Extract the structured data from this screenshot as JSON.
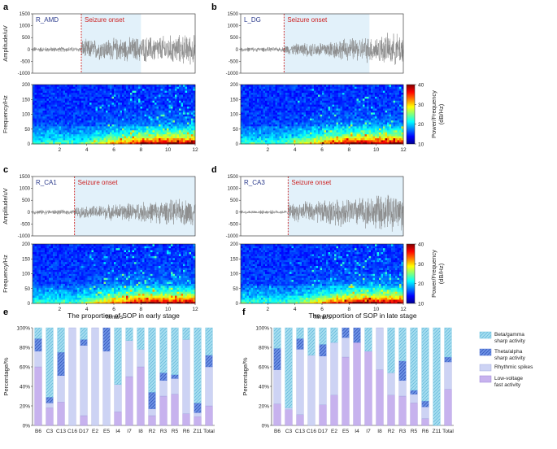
{
  "chart_data": {
    "eeg_panels": [
      {
        "label": "a",
        "region": "R_AMD",
        "onset_text": "Seizure onset",
        "onset_time": 3.6,
        "shade_range": [
          3.6,
          8.0
        ],
        "type": "line",
        "ylabel": "Amplitude/uV",
        "ylim": [
          -1000,
          1500
        ],
        "yticks": [
          -1000,
          -500,
          0,
          500,
          1000,
          1500
        ],
        "spec_ylabel": "Frequency/Hz",
        "spec_ylim": [
          0,
          200
        ],
        "spec_yticks": [
          0,
          50,
          100,
          150,
          200
        ],
        "xticks": [
          2,
          4,
          6,
          8,
          10,
          12
        ],
        "xlim": [
          0,
          12
        ],
        "xlabel": "",
        "pre_amp": 100,
        "post_amp": 380,
        "end_amp": 600
      },
      {
        "label": "b",
        "region": "L_DG",
        "onset_text": "Seizure onset",
        "onset_time": 3.2,
        "shade_range": [
          3.2,
          9.5
        ],
        "type": "line",
        "ylabel": "",
        "ylim": [
          -1000,
          1500
        ],
        "yticks": [
          -1000,
          -500,
          0,
          500,
          1000,
          1500
        ],
        "spec_ylabel": "",
        "spec_ylim": [
          0,
          200
        ],
        "spec_yticks": [
          0,
          50,
          100,
          150,
          200
        ],
        "xticks": [
          2,
          4,
          6,
          8,
          10,
          12
        ],
        "xlim": [
          0,
          12
        ],
        "xlabel": "",
        "pre_amp": 90,
        "post_amp": 180,
        "end_amp": 650
      },
      {
        "label": "c",
        "region": "R_CA1",
        "onset_text": "Seizure onset",
        "onset_time": 3.1,
        "shade_range": [
          3.1,
          12
        ],
        "type": "line",
        "ylabel": "Amplitude/uV",
        "ylim": [
          -1000,
          1500
        ],
        "yticks": [
          -1000,
          -500,
          0,
          500,
          1000,
          1500
        ],
        "spec_ylabel": "Frequency/Hz",
        "spec_ylim": [
          0,
          200
        ],
        "spec_yticks": [
          0,
          50,
          100,
          150,
          200
        ],
        "xticks": [
          2,
          4,
          6,
          8,
          10,
          12
        ],
        "xlim": [
          0,
          12
        ],
        "xlabel": "Time/s",
        "pre_amp": 90,
        "post_amp": 200,
        "end_amp": 550
      },
      {
        "label": "d",
        "region": "R_CA3",
        "onset_text": "Seizure onset",
        "onset_time": 3.5,
        "shade_range": [
          3.5,
          12
        ],
        "type": "line",
        "ylabel": "",
        "ylim": [
          -1000,
          1500
        ],
        "yticks": [
          -1000,
          -500,
          0,
          500,
          1000,
          1500
        ],
        "spec_ylabel": "",
        "spec_ylim": [
          0,
          200
        ],
        "spec_yticks": [
          0,
          50,
          100,
          150,
          200
        ],
        "xticks": [
          2,
          4,
          6,
          8,
          10,
          12
        ],
        "xlim": [
          0,
          12
        ],
        "xlabel": "Time/s",
        "pre_amp": 70,
        "post_amp": 350,
        "end_amp": 750
      }
    ],
    "colorbar": {
      "label_line1": "Power/Frequency",
      "label_line2": "(dB/Hz)",
      "range": [
        10,
        40
      ],
      "ticks": [
        10,
        20,
        30,
        40
      ]
    },
    "bar_panels": [
      {
        "label": "e",
        "type": "bar",
        "stacked": true,
        "title": "The proportion of SOP in early stage",
        "ylabel": "Percentage/%",
        "ylim": [
          0,
          100
        ],
        "yticks": [
          "0%",
          "20%",
          "40%",
          "60%",
          "80%",
          "100%"
        ],
        "categories": [
          "B6",
          "C3",
          "C13",
          "C16",
          "D17",
          "E2",
          "E5",
          "I4",
          "I7",
          "I8",
          "R2",
          "R3",
          "R5",
          "R6",
          "Z11",
          "Total"
        ],
        "series": [
          {
            "name": "Low-voltage fast activity",
            "values": [
              60,
              18,
              24,
              0,
              10,
              0,
              0,
              14,
              50,
              60,
              10,
              30,
              32,
              12,
              9,
              20
            ]
          },
          {
            "name": "Rhythmic spikes",
            "values": [
              16,
              5,
              27,
              100,
              72,
              100,
              76,
              28,
              37,
              18,
              7,
              16,
              16,
              76,
              4,
              40
            ]
          },
          {
            "name": "Theta/alpha sharp activity",
            "values": [
              13,
              6,
              24,
              0,
              6,
              0,
              24,
              0,
              0,
              0,
              17,
              8,
              4,
              0,
              10,
              12
            ]
          },
          {
            "name": "Beta/gamma sharp activity",
            "values": [
              11,
              71,
              25,
              0,
              12,
              0,
              0,
              58,
              13,
              22,
              66,
              46,
              48,
              12,
              77,
              28
            ]
          }
        ]
      },
      {
        "label": "f",
        "type": "bar",
        "stacked": true,
        "title": "The proportion of SOP in late stage",
        "ylabel": "Percentage/%",
        "ylim": [
          0,
          100
        ],
        "yticks": [
          "0%",
          "20%",
          "40%",
          "60%",
          "80%",
          "100%"
        ],
        "categories": [
          "B6",
          "C3",
          "C13",
          "C16",
          "D17",
          "E2",
          "E5",
          "I4",
          "I7",
          "I8",
          "R2",
          "R3",
          "R5",
          "R6",
          "Z11",
          "Total"
        ],
        "series": [
          {
            "name": "Low-voltage fast activity",
            "values": [
              22,
              16,
              11,
              0,
              21,
              31,
              70,
              85,
              76,
              57,
              31,
              30,
              23,
              7,
              0,
              37
            ]
          },
          {
            "name": "Rhythmic spikes",
            "values": [
              35,
              2,
              67,
              72,
              50,
              54,
              20,
              0,
              0,
              43,
              23,
              16,
              9,
              12,
              0,
              28
            ]
          },
          {
            "name": "Theta/alpha sharp activity",
            "values": [
              22,
              0,
              11,
              0,
              12,
              0,
              10,
              15,
              0,
              0,
              0,
              20,
              4,
              6,
              0,
              5
            ]
          },
          {
            "name": "Beta/gamma sharp activity",
            "values": [
              21,
              82,
              11,
              28,
              17,
              15,
              0,
              0,
              24,
              0,
              46,
              34,
              64,
              75,
              100,
              30
            ]
          }
        ]
      }
    ],
    "legend": [
      {
        "line1": "Beta/gamma",
        "line2": "sharp activity"
      },
      {
        "line1": "Theta/alpha",
        "line2": "sharp activity"
      },
      {
        "line1": "Rhythmic spikes",
        "line2": ""
      },
      {
        "line1": "Low-voltage",
        "line2": "fast activity"
      }
    ]
  },
  "colors": {
    "shade": "#e2f1fa",
    "onset_line": "#cc2222",
    "onset_text": "#cc2222",
    "region_text": "#2a3a8c",
    "trace": "#8a8a8a",
    "low_voltage": "#c7b2ee",
    "rhythmic": "#cdd3f4",
    "theta_alpha": "#6f94e6",
    "beta_gamma": "#a6def0",
    "bar_edge": "#5a7ad8"
  }
}
